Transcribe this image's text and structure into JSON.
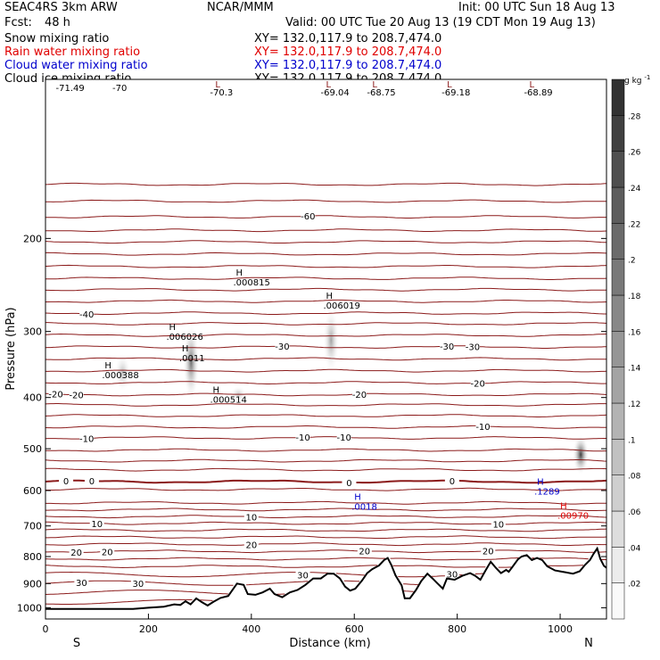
{
  "header": {
    "model": "SEAC4RS   3km ARW",
    "org": "NCAR/MMM",
    "init": "Init: 00 UTC Sun 18 Aug 13",
    "fcst_label": "Fcst:",
    "fcst_value": "48 h",
    "valid": "Valid: 00 UTC Tue 20 Aug 13 (19 CDT Mon 19 Aug 13)"
  },
  "fields": [
    {
      "name": "Snow mixing ratio",
      "xy": "XY= 132.0,117.9 to 208.7,474.0",
      "color": "#000000"
    },
    {
      "name": "Rain water mixing ratio",
      "xy": "XY= 132.0,117.9 to 208.7,474.0",
      "color": "#e00000"
    },
    {
      "name": "Cloud water mixing ratio",
      "xy": "XY= 132.0,117.9 to 208.7,474.0",
      "color": "#0000cc"
    },
    {
      "name": "Cloud ice mixing ratio",
      "xy": "XY= 132.0,117.9 to 208.7,474.0",
      "color": "#000000"
    }
  ],
  "colorbar": {
    "unit_main": "g kg",
    "unit_exp": "-1",
    "labels": [
      ".02",
      ".04",
      ".06",
      ".08",
      ".1",
      ".12",
      ".14",
      ".16",
      ".18",
      ".2",
      ".22",
      ".24",
      ".26",
      ".28"
    ]
  },
  "chart_data": {
    "type": "cross-section",
    "xlabel": "Distance (km)",
    "ylabel": "Pressure (hPa)",
    "xlim": [
      0,
      1090
    ],
    "ylim": [
      1050,
      100
    ],
    "x_ticks": [
      "0",
      "200",
      "400",
      "600",
      "800",
      "1000"
    ],
    "x_tick_values": [
      0,
      200,
      400,
      600,
      800,
      1000
    ],
    "y_ticks": [
      "200",
      "300",
      "400",
      "500",
      "600",
      "700",
      "800",
      "900",
      "1000"
    ],
    "y_tick_values": [
      200,
      300,
      400,
      500,
      600,
      700,
      800,
      900,
      1000
    ],
    "y_scale": "log",
    "end_labels": {
      "left": "S",
      "right": "N"
    },
    "temperature_contours": {
      "color": "#8b1a1a",
      "levels": [
        {
          "p": 1020,
          "label": "",
          "lx": []
        },
        {
          "p": 975,
          "label": "",
          "lx": []
        },
        {
          "p": 935,
          "label": "",
          "lx": []
        },
        {
          "p": 898,
          "label": "30",
          "lx": [
            70,
            180
          ]
        },
        {
          "p": 865,
          "label": "30",
          "lx": [
            500,
            790
          ]
        },
        {
          "p": 835,
          "label": "",
          "lx": []
        },
        {
          "p": 808,
          "label": "",
          "lx": []
        },
        {
          "p": 782,
          "label": "20",
          "lx": [
            60,
            120,
            620,
            860
          ]
        },
        {
          "p": 758,
          "label": "20",
          "lx": [
            400
          ]
        },
        {
          "p": 735,
          "label": "",
          "lx": []
        },
        {
          "p": 713,
          "label": "",
          "lx": []
        },
        {
          "p": 692,
          "label": "10",
          "lx": [
            100,
            880
          ]
        },
        {
          "p": 672,
          "label": "10",
          "lx": [
            400
          ]
        },
        {
          "p": 652,
          "label": "",
          "lx": []
        },
        {
          "p": 633,
          "label": "",
          "lx": []
        },
        {
          "p": 597,
          "label": "",
          "lx": []
        },
        {
          "p": 577,
          "label": "0",
          "lx": [
            40,
            90,
            590,
            790
          ],
          "freezing": true
        },
        {
          "p": 548,
          "label": "",
          "lx": []
        },
        {
          "p": 527,
          "label": "",
          "lx": []
        },
        {
          "p": 503,
          "label": "",
          "lx": []
        },
        {
          "p": 477,
          "label": "-10",
          "lx": [
            80,
            500,
            580
          ]
        },
        {
          "p": 455,
          "label": "-10",
          "lx": [
            850
          ]
        },
        {
          "p": 433,
          "label": "",
          "lx": []
        },
        {
          "p": 413,
          "label": "",
          "lx": []
        },
        {
          "p": 395,
          "label": "-20",
          "lx": [
            20,
            60,
            610
          ]
        },
        {
          "p": 375,
          "label": "-20",
          "lx": [
            840
          ]
        },
        {
          "p": 356,
          "label": "",
          "lx": []
        },
        {
          "p": 338,
          "label": "",
          "lx": []
        },
        {
          "p": 321,
          "label": "-30",
          "lx": [
            460,
            780,
            830
          ]
        },
        {
          "p": 305,
          "label": "",
          "lx": []
        },
        {
          "p": 290,
          "label": "",
          "lx": []
        },
        {
          "p": 277,
          "label": "-40",
          "lx": [
            80
          ]
        },
        {
          "p": 263,
          "label": "",
          "lx": []
        },
        {
          "p": 250,
          "label": "",
          "lx": []
        },
        {
          "p": 238,
          "label": "",
          "lx": []
        },
        {
          "p": 226,
          "label": "",
          "lx": []
        },
        {
          "p": 214,
          "label": "",
          "lx": []
        },
        {
          "p": 203,
          "label": "",
          "lx": []
        },
        {
          "p": 193,
          "label": "",
          "lx": []
        },
        {
          "p": 182,
          "label": "-60",
          "lx": [
            510
          ]
        },
        {
          "p": 170,
          "label": "",
          "lx": []
        },
        {
          "p": 158,
          "label": "",
          "lx": []
        }
      ]
    },
    "top_lows": [
      {
        "label": "L",
        "x": 330,
        "value": "-70.3"
      },
      {
        "label": "L",
        "x": 545,
        "value": "-69.04"
      },
      {
        "label": "L",
        "x": 635,
        "value": "-68.75"
      },
      {
        "label": "L",
        "x": 780,
        "value": "-69.18"
      },
      {
        "label": "L",
        "x": 940,
        "value": "-68.89"
      }
    ],
    "top_edge_values": [
      {
        "x": 20,
        "value": "-71.49"
      },
      {
        "x": 130,
        "value": "-70"
      }
    ],
    "mixing_maxima": [
      {
        "label": "H",
        "x": 115,
        "p": 352,
        "value": ".000388",
        "color": "#000000"
      },
      {
        "label": "H",
        "x": 240,
        "p": 298,
        "value": ".006026",
        "color": "#000000"
      },
      {
        "label": "H",
        "x": 265,
        "p": 327,
        "value": ".0011",
        "color": "#000000"
      },
      {
        "label": "H",
        "x": 325,
        "p": 392,
        "value": ".000514",
        "color": "#000000"
      },
      {
        "label": "H",
        "x": 370,
        "p": 235,
        "value": ".000815",
        "color": "#000000"
      },
      {
        "label": "H",
        "x": 545,
        "p": 260,
        "value": ".006019",
        "color": "#000000"
      },
      {
        "label": "H",
        "x": 600,
        "p": 625,
        "value": ".0018",
        "color": "#0000cc"
      },
      {
        "label": "H",
        "x": 955,
        "p": 585,
        "value": ".1289",
        "color": "#0000cc"
      },
      {
        "label": "H",
        "x": 1000,
        "p": 650,
        "value": ".00970",
        "color": "#e00000"
      }
    ],
    "snow_blobs": [
      {
        "x": 150,
        "p_top": 330,
        "p_bot": 390,
        "max": 0.05
      },
      {
        "x": 283,
        "p_top": 290,
        "p_bot": 405,
        "max": 0.14
      },
      {
        "x": 375,
        "p_top": 380,
        "p_bot": 410,
        "max": 0.04
      },
      {
        "x": 555,
        "p_top": 270,
        "p_bot": 360,
        "max": 0.08
      },
      {
        "x": 1040,
        "p_top": 470,
        "p_bot": 560,
        "max": 0.2
      }
    ],
    "terrain": [
      [
        0,
        1005
      ],
      [
        170,
        1005
      ],
      [
        200,
        1000
      ],
      [
        230,
        995
      ],
      [
        250,
        985
      ],
      [
        262,
        988
      ],
      [
        272,
        972
      ],
      [
        282,
        985
      ],
      [
        293,
        960
      ],
      [
        303,
        975
      ],
      [
        315,
        990
      ],
      [
        326,
        975
      ],
      [
        340,
        958
      ],
      [
        355,
        950
      ],
      [
        372,
        900
      ],
      [
        385,
        905
      ],
      [
        393,
        942
      ],
      [
        408,
        945
      ],
      [
        422,
        935
      ],
      [
        436,
        920
      ],
      [
        445,
        942
      ],
      [
        460,
        955
      ],
      [
        475,
        935
      ],
      [
        490,
        925
      ],
      [
        505,
        905
      ],
      [
        520,
        880
      ],
      [
        535,
        880
      ],
      [
        548,
        862
      ],
      [
        560,
        862
      ],
      [
        572,
        880
      ],
      [
        582,
        912
      ],
      [
        592,
        928
      ],
      [
        602,
        920
      ],
      [
        615,
        888
      ],
      [
        625,
        860
      ],
      [
        635,
        845
      ],
      [
        648,
        832
      ],
      [
        658,
        812
      ],
      [
        665,
        805
      ],
      [
        672,
        830
      ],
      [
        680,
        868
      ],
      [
        692,
        907
      ],
      [
        698,
        960
      ],
      [
        708,
        960
      ],
      [
        720,
        925
      ],
      [
        730,
        890
      ],
      [
        742,
        862
      ],
      [
        752,
        880
      ],
      [
        762,
        900
      ],
      [
        772,
        920
      ],
      [
        780,
        880
      ],
      [
        795,
        885
      ],
      [
        810,
        870
      ],
      [
        825,
        860
      ],
      [
        835,
        870
      ],
      [
        845,
        885
      ],
      [
        855,
        850
      ],
      [
        865,
        818
      ],
      [
        875,
        840
      ],
      [
        885,
        860
      ],
      [
        895,
        848
      ],
      [
        900,
        855
      ],
      [
        908,
        835
      ],
      [
        918,
        810
      ],
      [
        925,
        800
      ],
      [
        935,
        795
      ],
      [
        945,
        812
      ],
      [
        955,
        805
      ],
      [
        965,
        812
      ],
      [
        975,
        835
      ],
      [
        990,
        850
      ],
      [
        1005,
        855
      ],
      [
        1025,
        862
      ],
      [
        1038,
        853
      ],
      [
        1048,
        830
      ],
      [
        1058,
        812
      ],
      [
        1065,
        790
      ],
      [
        1072,
        772
      ],
      [
        1078,
        808
      ],
      [
        1085,
        833
      ],
      [
        1090,
        840
      ]
    ],
    "fill_color": "#000000"
  }
}
